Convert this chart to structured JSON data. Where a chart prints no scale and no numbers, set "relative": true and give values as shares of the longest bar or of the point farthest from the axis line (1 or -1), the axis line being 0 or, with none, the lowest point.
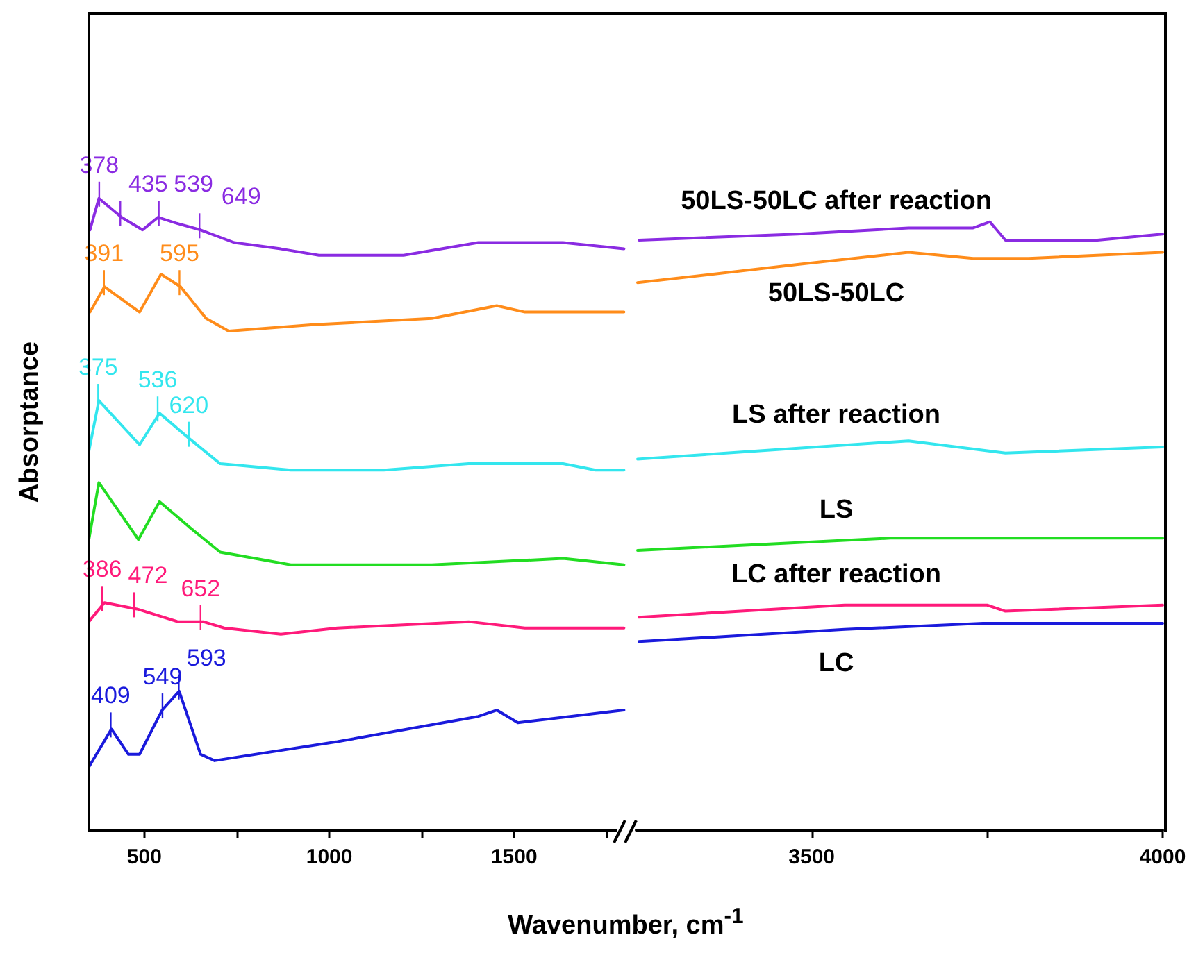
{
  "chart_data": [
    {
      "type": "line",
      "relative": true,
      "ylabel": "Absorptance",
      "xlabel": "Wavenumber, cm$^{-1}$",
      "xlim": [
        350,
        1800
      ],
      "xticks": [
        500,
        {
          "value": 750,
          "label": null
        },
        1000,
        {
          "value": 1250,
          "label": null
        },
        1500,
        {
          "value": 1750,
          "label": null
        }
      ],
      "marker": "none",
      "tick_labels": "x",
      "series": [
        {
          "color": "#8a2be2",
          "x": [
            353,
            377,
            438,
            495,
            537,
            590,
            652,
            743,
            869,
            972,
            1201,
            1403,
            1480,
            1556,
            1632,
            1797
          ],
          "values": [
            0.95,
            1.0,
            0.97,
            0.95,
            0.97,
            0.96,
            0.95,
            0.93,
            0.92,
            0.91,
            0.91,
            0.93,
            0.93,
            0.93,
            0.93,
            0.92
          ]
        },
        {
          "color": "#ff8c1a",
          "x": [
            353,
            392,
            487,
            545,
            598,
            667,
            728,
            957,
            1277,
            1453,
            1529,
            1632,
            1797
          ],
          "values": [
            0.82,
            0.86,
            0.82,
            0.88,
            0.86,
            0.81,
            0.79,
            0.8,
            0.81,
            0.83,
            0.82,
            0.82,
            0.82
          ]
        },
        {
          "color": "#33e6ee",
          "x": [
            350,
            377,
            487,
            541,
            621,
            705,
            896,
            1148,
            1377,
            1632,
            1720,
            1797
          ],
          "values": [
            0.6,
            0.68,
            0.61,
            0.66,
            0.62,
            0.58,
            0.57,
            0.57,
            0.58,
            0.58,
            0.57,
            0.57
          ]
        },
        {
          "color": "#22dd22",
          "x": [
            350,
            377,
            484,
            541,
            621,
            705,
            896,
            1277,
            1632,
            1797
          ],
          "values": [
            0.46,
            0.55,
            0.46,
            0.52,
            0.48,
            0.44,
            0.42,
            0.42,
            0.43,
            0.42
          ]
        },
        {
          "color": "#ff1a7a",
          "x": [
            350,
            392,
            480,
            590,
            659,
            716,
            869,
            1022,
            1377,
            1529,
            1797
          ],
          "values": [
            0.33,
            0.36,
            0.35,
            0.33,
            0.33,
            0.32,
            0.31,
            0.32,
            0.33,
            0.32,
            0.32
          ]
        },
        {
          "color": "#1a1adc",
          "x": [
            350,
            411,
            457,
            487,
            548,
            594,
            652,
            690,
            1022,
            1403,
            1453,
            1510,
            1797
          ],
          "values": [
            0.1,
            0.16,
            0.12,
            0.12,
            0.19,
            0.22,
            0.12,
            0.11,
            0.14,
            0.18,
            0.19,
            0.17,
            0.19
          ]
        }
      ],
      "annotations": [
        {
          "text": "378",
          "x": 378,
          "y": 1.0
        },
        {
          "text": "435",
          "x": 435,
          "y": 0.97
        },
        {
          "text": "539",
          "x": 539,
          "y": 0.97
        },
        {
          "text": "649",
          "x": 649,
          "y": 0.95
        },
        {
          "text": "391",
          "x": 391,
          "y": 0.86
        },
        {
          "text": "595",
          "x": 595,
          "y": 0.86
        },
        {
          "text": "375",
          "x": 375,
          "y": 0.68
        },
        {
          "text": "536",
          "x": 536,
          "y": 0.66
        },
        {
          "text": "620",
          "x": 620,
          "y": 0.62
        },
        {
          "text": "386",
          "x": 386,
          "y": 0.36
        },
        {
          "text": "472",
          "x": 472,
          "y": 0.35
        },
        {
          "text": "652",
          "x": 652,
          "y": 0.33
        },
        {
          "text": "409",
          "x": 409,
          "y": 0.16
        },
        {
          "text": "549",
          "x": 549,
          "y": 0.19
        },
        {
          "text": "593",
          "x": 593,
          "y": 0.22
        }
      ]
    },
    {
      "type": "line",
      "relative": true,
      "xlim": [
        3250,
        4000
      ],
      "xticks": [
        3500,
        {
          "value": 3750,
          "label": null
        },
        4000
      ],
      "marker": "none",
      "tick_labels": "x",
      "series": [
        {
          "name": "50LS-50LC after reaction",
          "color": "#8a2be2",
          "x": [
            3254,
            3480,
            3638,
            3730,
            3754,
            3776,
            3907,
            4000
          ],
          "values": [
            0.97,
            0.98,
            0.99,
            0.99,
            1.0,
            0.97,
            0.97,
            0.98
          ]
        },
        {
          "name": "50LS-50LC",
          "color": "#ff8c1a",
          "x": [
            3252,
            3480,
            3638,
            3730,
            3809,
            4000
          ],
          "values": [
            0.9,
            0.93,
            0.95,
            0.94,
            0.94,
            0.95
          ]
        },
        {
          "name": "LS after reaction",
          "color": "#33e6ee",
          "x": [
            3252,
            3638,
            3776,
            4000
          ],
          "values": [
            0.61,
            0.64,
            0.62,
            0.63
          ]
        },
        {
          "name": "LS",
          "color": "#22dd22",
          "x": [
            3252,
            3612,
            3776,
            4000
          ],
          "values": [
            0.46,
            0.48,
            0.48,
            0.48
          ]
        },
        {
          "name": "LC after reaction",
          "color": "#ff1a7a",
          "x": [
            3254,
            3547,
            3750,
            3776,
            4000
          ],
          "values": [
            0.35,
            0.37,
            0.37,
            0.36,
            0.37
          ]
        },
        {
          "name": "LC",
          "color": "#1a1adc",
          "x": [
            3254,
            3547,
            3744,
            4000
          ],
          "values": [
            0.31,
            0.33,
            0.34,
            0.34
          ]
        }
      ]
    }
  ]
}
